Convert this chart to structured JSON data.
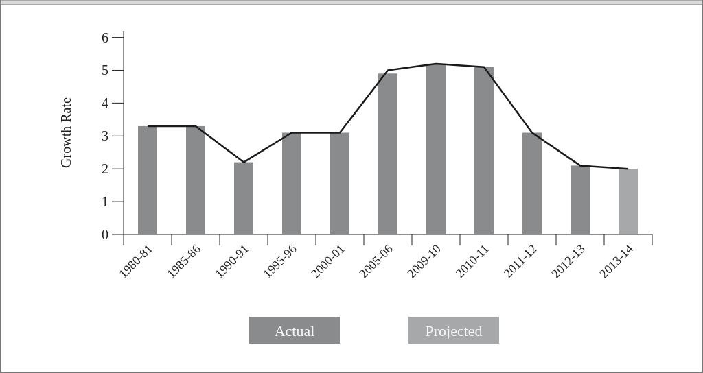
{
  "chart_data": {
    "type": "bar",
    "ylabel": "Growth Rate",
    "categories": [
      "1980-81",
      "1985-86",
      "1990-91",
      "1995-96",
      "2000-01",
      "2005-06",
      "2009-10",
      "2010-11",
      "2011-12",
      "2012-13",
      "2013-14"
    ],
    "series": [
      {
        "name": "Actual",
        "color": "#8a8b8d",
        "values": [
          3.3,
          3.3,
          2.2,
          3.1,
          3.1,
          4.9,
          5.2,
          5.1,
          3.1,
          2.1,
          null
        ]
      },
      {
        "name": "Projected",
        "color": "#a7a8aa",
        "values": [
          null,
          null,
          null,
          null,
          null,
          null,
          null,
          null,
          null,
          null,
          2.0
        ]
      },
      {
        "type": "line",
        "color": "#1a1a1a",
        "values": [
          3.3,
          3.3,
          2.2,
          3.1,
          3.1,
          5.0,
          5.2,
          5.1,
          3.1,
          2.1,
          2.0
        ]
      }
    ],
    "ylim": [
      0,
      6.2
    ],
    "yticks": [
      0,
      1,
      2,
      3,
      4,
      5,
      6
    ],
    "grid": false,
    "legend": "bottom",
    "marker": "none",
    "line_style": "solid"
  }
}
